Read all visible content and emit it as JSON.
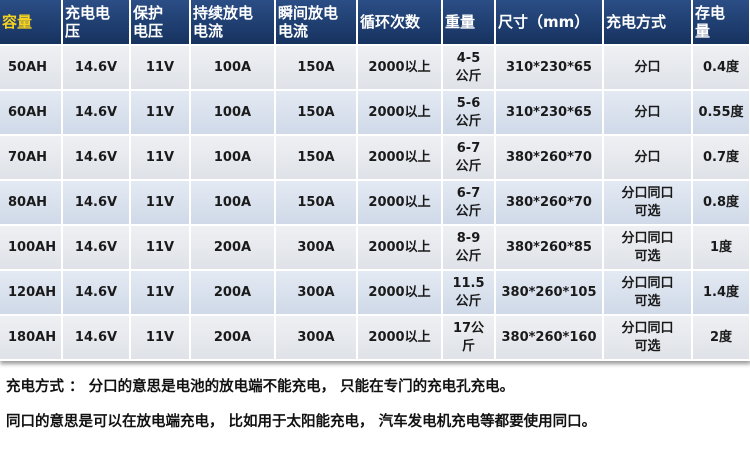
{
  "table": {
    "header": [
      "容量",
      "充电电\n压",
      "保护\n电压",
      "持续放电\n电流",
      "瞬间放电\n电流",
      "循环次数",
      "重量",
      "尺寸（mm）",
      "充电方式",
      "存电\n量"
    ],
    "rows": [
      [
        "50AH",
        "14.6V",
        "11V",
        "100A",
        "150A",
        "2000以上",
        "4-5\n公斤",
        "310*230*65",
        "分口",
        "0.4度"
      ],
      [
        "60AH",
        "14.6V",
        "11V",
        "100A",
        "150A",
        "2000以上",
        "5-6\n公斤",
        "310*230*65",
        "分口",
        "0.55度"
      ],
      [
        "70AH",
        "14.6V",
        "11V",
        "100A",
        "150A",
        "2000以上",
        "6-7\n公斤",
        "380*260*70",
        "分口",
        "0.7度"
      ],
      [
        "80AH",
        "14.6V",
        "11V",
        "100A",
        "150A",
        "2000以上",
        "6-7\n公斤",
        "380*260*70",
        "分口同口\n可选",
        "0.8度"
      ],
      [
        "100AH",
        "14.6V",
        "11V",
        "200A",
        "300A",
        "2000以上",
        "8-9\n公斤",
        "380*260*85",
        "分口同口\n可选",
        "1度"
      ],
      [
        "120AH",
        "14.6V",
        "11V",
        "200A",
        "300A",
        "2000以上",
        "11.5\n公斤",
        "380*260*105",
        "分口同口\n可选",
        "1.4度"
      ],
      [
        "180AH",
        "14.6V",
        "11V",
        "200A",
        "300A",
        "2000以上",
        "17公\n斤",
        "380*260*160",
        "分口同口\n可选",
        "2度"
      ]
    ]
  },
  "notes": [
    "充电方式 ： 分口的意思是电池的放电端不能充电， 只能在专门的充电孔充电。",
    "同口的意思是可以在放电端充电， 比如用于太阳能充电， 汽车发电机充电等都要使用同口。"
  ]
}
